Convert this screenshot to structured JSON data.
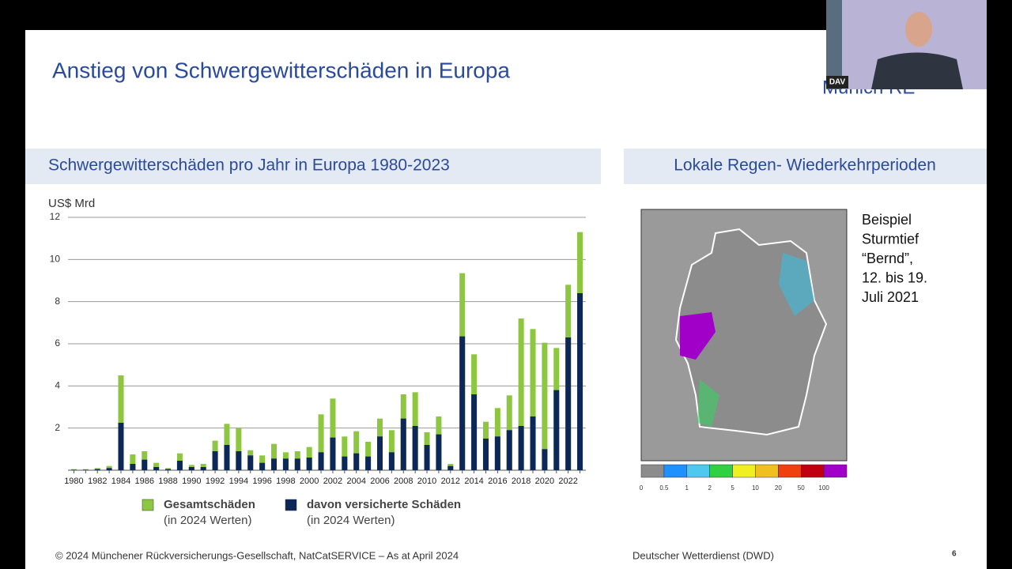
{
  "slide": {
    "title": "Anstieg von Schwergewitterschäden in Europa",
    "logo": "Munich RE",
    "webcam_label": "DAV",
    "left_header": "Schwergewitterschäden pro Jahr in Europa 1980-2023",
    "right_header": "Lokale Regen- Wiederkehrperioden",
    "map_caption": [
      "Beispiel",
      "Sturmtief",
      "“Bernd”,",
      "12. bis 19.",
      "Juli 2021"
    ],
    "colorbar_labels": [
      "0",
      "0.5",
      "1",
      "2",
      "5",
      "10",
      "20",
      "50",
      "100"
    ],
    "footer_left": "© 2024 Münchener Rückversicherungs-Gesellschaft, NatCatSERVICE – As at April 2024",
    "footer_right": "Deutscher Wetterdienst (DWD)",
    "page_number": "6"
  },
  "chart_data": {
    "type": "bar",
    "y_label": "US$ Mrd",
    "categories": [
      "1980",
      null,
      "1982",
      null,
      "1984",
      null,
      "1986",
      null,
      "1988",
      null,
      "1990",
      null,
      "1992",
      null,
      "1994",
      null,
      "1996",
      null,
      "1998",
      null,
      "2000",
      null,
      "2002",
      null,
      "2004",
      null,
      "2006",
      null,
      "2008",
      null,
      "2010",
      null,
      "2012",
      null,
      "2014",
      null,
      "2016",
      null,
      "2018",
      null,
      "2020",
      null,
      "2022",
      null
    ],
    "series": [
      {
        "name": "Gesamtschäden",
        "note": "(in 2024 Werten)",
        "color": "#8dc63f",
        "values": [
          0.05,
          0.05,
          0.1,
          0.2,
          4.5,
          0.75,
          0.9,
          0.35,
          0.1,
          0.8,
          0.25,
          0.3,
          1.4,
          2.2,
          2.0,
          0.95,
          0.7,
          1.25,
          0.85,
          0.9,
          1.1,
          2.65,
          3.4,
          1.6,
          1.85,
          1.35,
          2.45,
          1.9,
          3.6,
          3.7,
          1.8,
          2.55,
          0.3,
          9.35,
          5.5,
          2.3,
          2.95,
          3.55,
          7.2,
          6.7,
          6.05,
          5.8,
          8.8,
          11.3
        ]
      },
      {
        "name": "davon versicherte Schäden",
        "note": "(in 2024 Werten)",
        "color": "#0b2858",
        "values": [
          0.02,
          0.02,
          0.05,
          0.1,
          2.25,
          0.3,
          0.5,
          0.15,
          0.05,
          0.45,
          0.15,
          0.15,
          0.9,
          1.2,
          0.9,
          0.7,
          0.35,
          0.55,
          0.55,
          0.55,
          0.6,
          0.85,
          1.55,
          0.65,
          0.8,
          0.65,
          1.6,
          0.85,
          2.45,
          2.1,
          1.2,
          1.7,
          0.2,
          6.35,
          3.6,
          1.5,
          1.6,
          1.9,
          2.1,
          2.55,
          1.0,
          3.8,
          6.3,
          8.4
        ]
      }
    ],
    "ylim": [
      0,
      12
    ],
    "yticks": [
      2,
      4,
      6,
      8,
      10,
      12
    ],
    "grid": true
  }
}
